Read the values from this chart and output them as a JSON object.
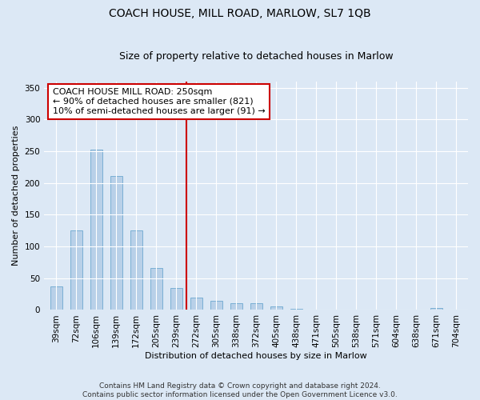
{
  "title": "COACH HOUSE, MILL ROAD, MARLOW, SL7 1QB",
  "subtitle": "Size of property relative to detached houses in Marlow",
  "xlabel": "Distribution of detached houses by size in Marlow",
  "ylabel": "Number of detached properties",
  "categories": [
    "39sqm",
    "72sqm",
    "106sqm",
    "139sqm",
    "172sqm",
    "205sqm",
    "239sqm",
    "272sqm",
    "305sqm",
    "338sqm",
    "372sqm",
    "405sqm",
    "438sqm",
    "471sqm",
    "505sqm",
    "538sqm",
    "571sqm",
    "604sqm",
    "638sqm",
    "671sqm",
    "704sqm"
  ],
  "values": [
    37,
    125,
    253,
    211,
    125,
    66,
    35,
    20,
    14,
    11,
    11,
    5,
    2,
    1,
    0,
    0,
    0,
    0,
    0,
    3,
    0
  ],
  "bar_color": "#b8d0e8",
  "bar_edge_color": "#7aafd4",
  "vline_x_index": 6.5,
  "vline_color": "#cc0000",
  "annotation_text": "COACH HOUSE MILL ROAD: 250sqm\n← 90% of detached houses are smaller (821)\n10% of semi-detached houses are larger (91) →",
  "annotation_box_color": "#ffffff",
  "annotation_box_edge": "#cc0000",
  "ylim": [
    0,
    360
  ],
  "yticks": [
    0,
    50,
    100,
    150,
    200,
    250,
    300,
    350
  ],
  "background_color": "#dce8f5",
  "grid_color": "#c5d8ee",
  "footer": "Contains HM Land Registry data © Crown copyright and database right 2024.\nContains public sector information licensed under the Open Government Licence v3.0.",
  "title_fontsize": 10,
  "subtitle_fontsize": 9,
  "axis_label_fontsize": 8,
  "tick_fontsize": 7.5,
  "annotation_fontsize": 8,
  "bar_width": 0.6
}
